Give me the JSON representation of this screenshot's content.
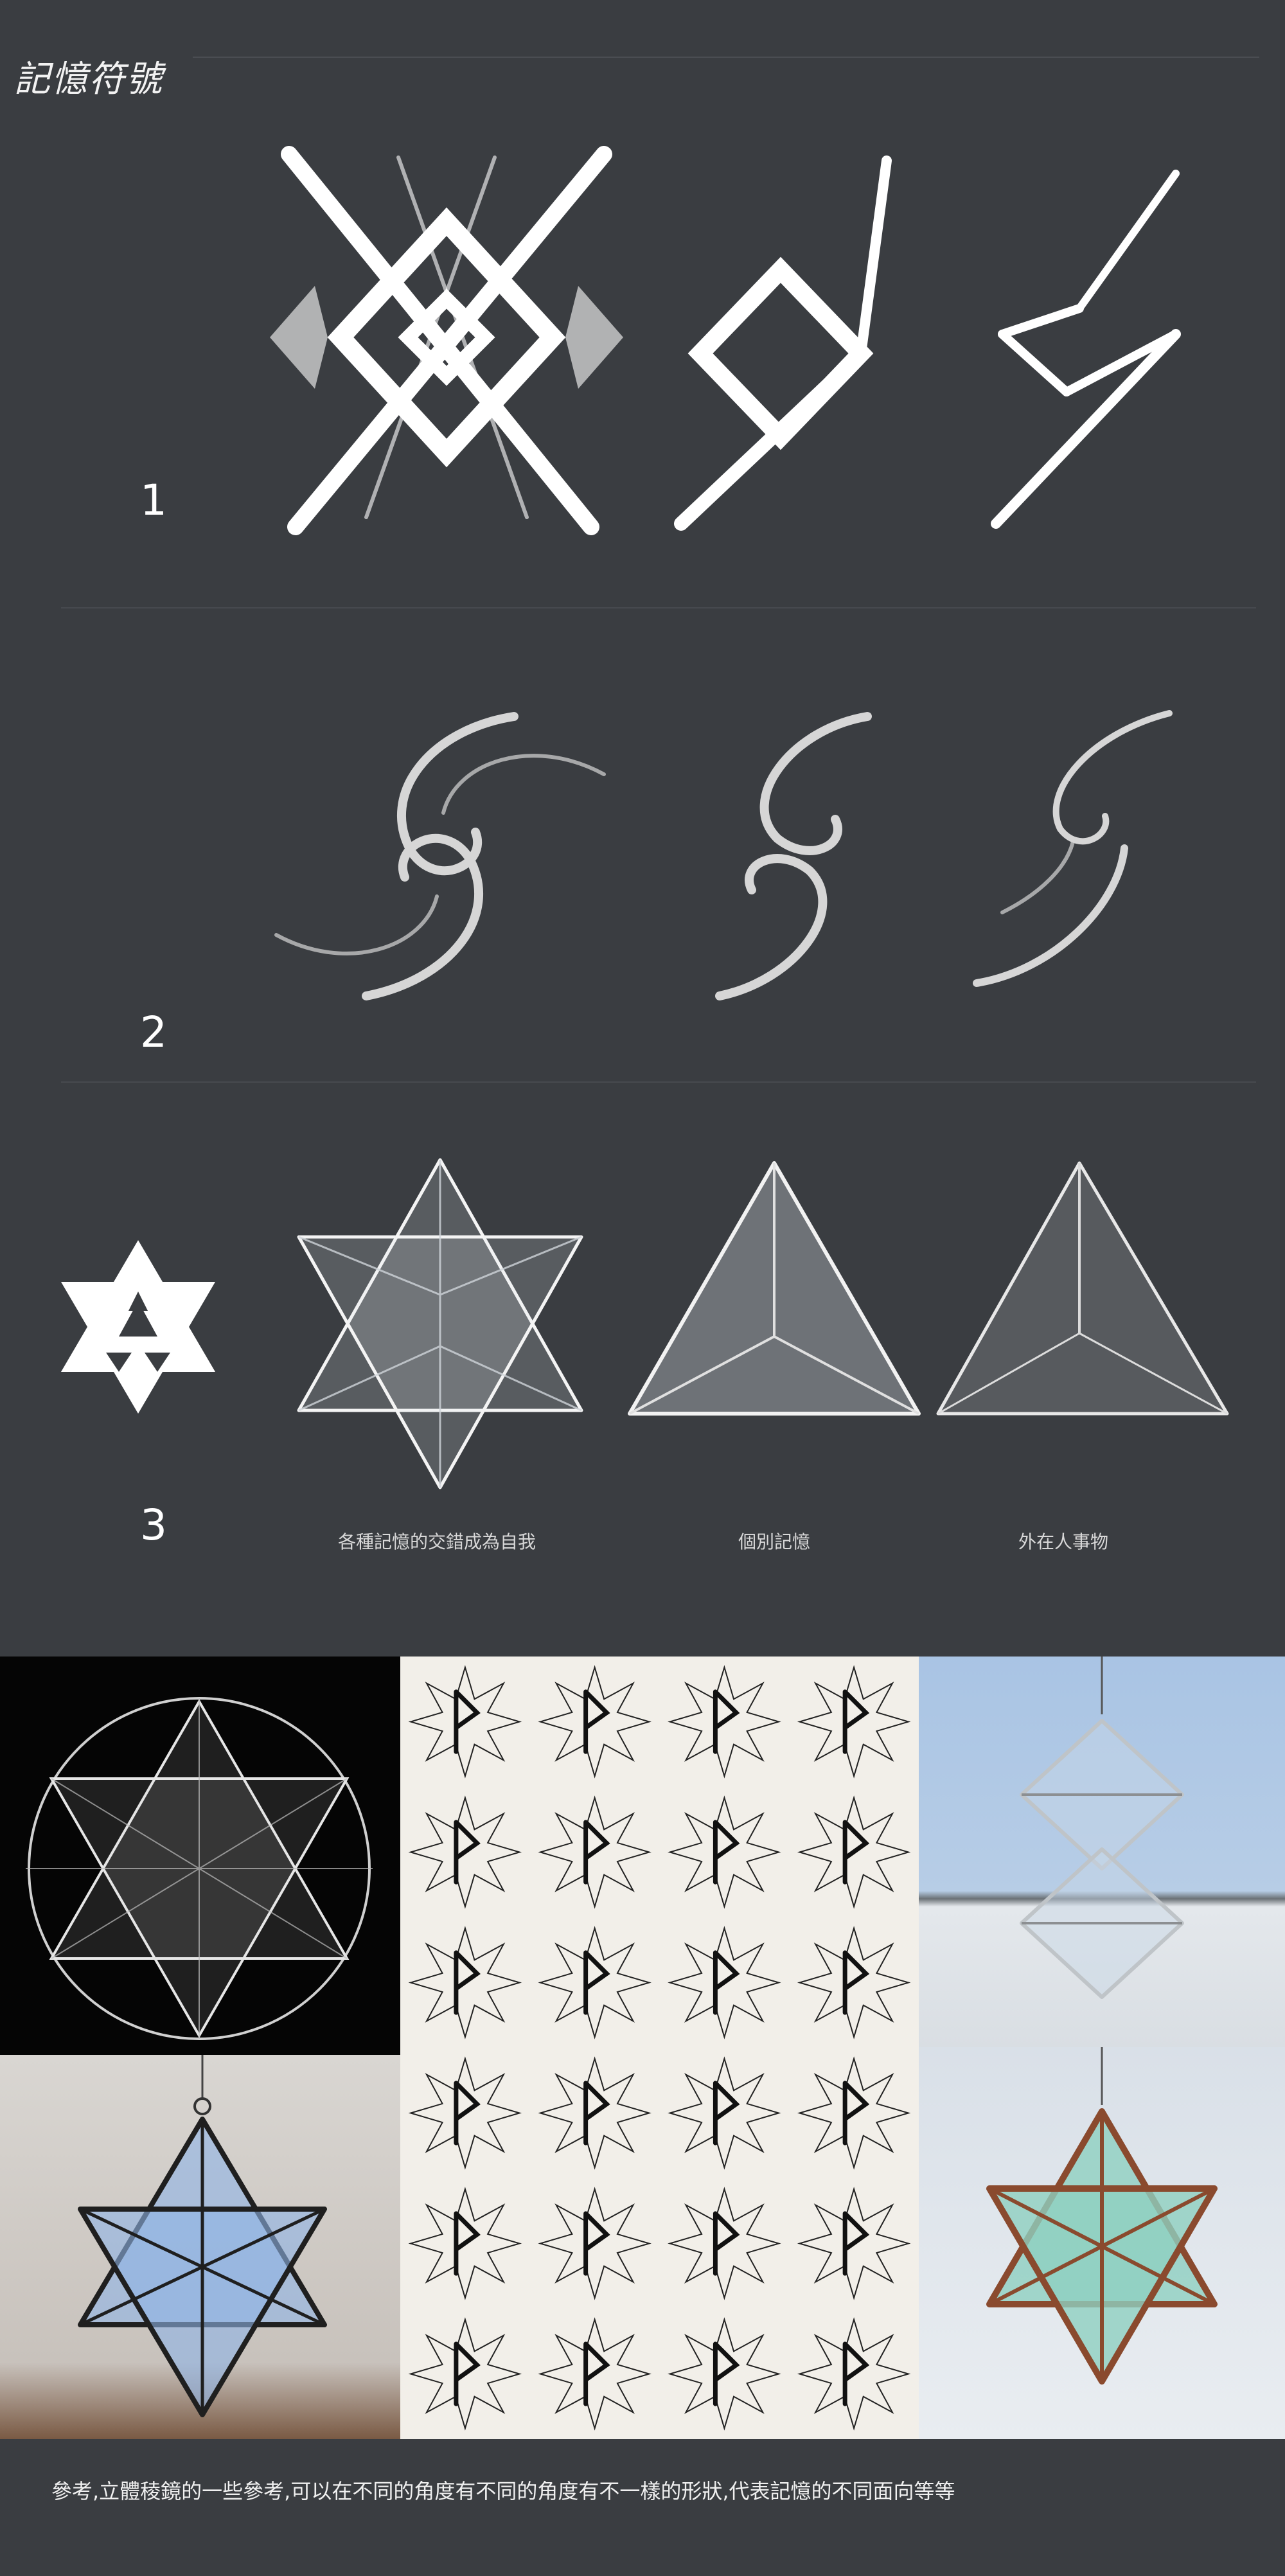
{
  "title": "記憶符號",
  "rows": [
    {
      "number": "1"
    },
    {
      "number": "2"
    },
    {
      "number": "3"
    }
  ],
  "captions": {
    "star": "各種記憶的交錯成為自我",
    "tetra": "個別記憶",
    "side": "外在人事物"
  },
  "footer_note": "參考,立體稜鏡的一些參考,可以在不同的角度有不同的角度有不一樣的形狀,代表記憶的不同面向等等",
  "colors": {
    "background": "#3a3d41",
    "symbol": "#ffffff",
    "glass_blue": "#8fb4e6",
    "glass_green": "#8fd0c0",
    "copper": "#8a4a2e",
    "sky": "#a9c4e4"
  }
}
